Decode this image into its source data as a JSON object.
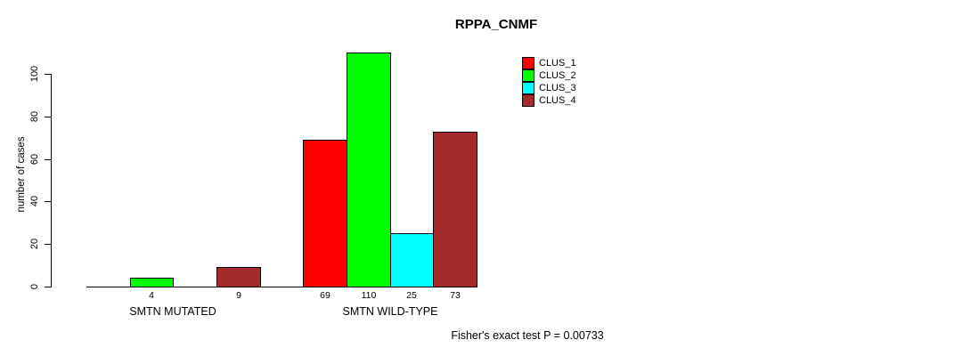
{
  "title": "RPPA_CNMF",
  "y_axis": {
    "label": "number of cases",
    "ticks": [
      0,
      20,
      40,
      60,
      80,
      100
    ]
  },
  "footer": "Fisher's exact test P = 0.00733",
  "legend": {
    "entries": [
      {
        "label": "CLUS_1",
        "color": "#ff0000"
      },
      {
        "label": "CLUS_2",
        "color": "#00ff00"
      },
      {
        "label": "CLUS_3",
        "color": "#00ffff"
      },
      {
        "label": "CLUS_4",
        "color": "#a52a2a"
      }
    ]
  },
  "chart_data": {
    "type": "bar",
    "title": "RPPA_CNMF",
    "xlabel": "",
    "ylabel": "number of cases",
    "categories": [
      "SMTN MUTATED",
      "SMTN WILD-TYPE"
    ],
    "series": [
      {
        "name": "CLUS_1",
        "color": "#ff0000",
        "values": [
          0,
          69
        ]
      },
      {
        "name": "CLUS_2",
        "color": "#00ff00",
        "values": [
          4,
          110
        ]
      },
      {
        "name": "CLUS_3",
        "color": "#00ffff",
        "values": [
          0,
          25
        ]
      },
      {
        "name": "CLUS_4",
        "color": "#a52a2a",
        "values": [
          9,
          73
        ]
      }
    ],
    "bar_value_labels": [
      [
        "",
        "4",
        "",
        "9"
      ],
      [
        "69",
        "110",
        "25",
        "73"
      ]
    ],
    "ylim": [
      0,
      110
    ],
    "yticks": [
      0,
      20,
      40,
      60,
      80,
      100
    ],
    "grid": false,
    "legend_position": "top-right",
    "annotation": "Fisher's exact test P = 0.00733"
  }
}
